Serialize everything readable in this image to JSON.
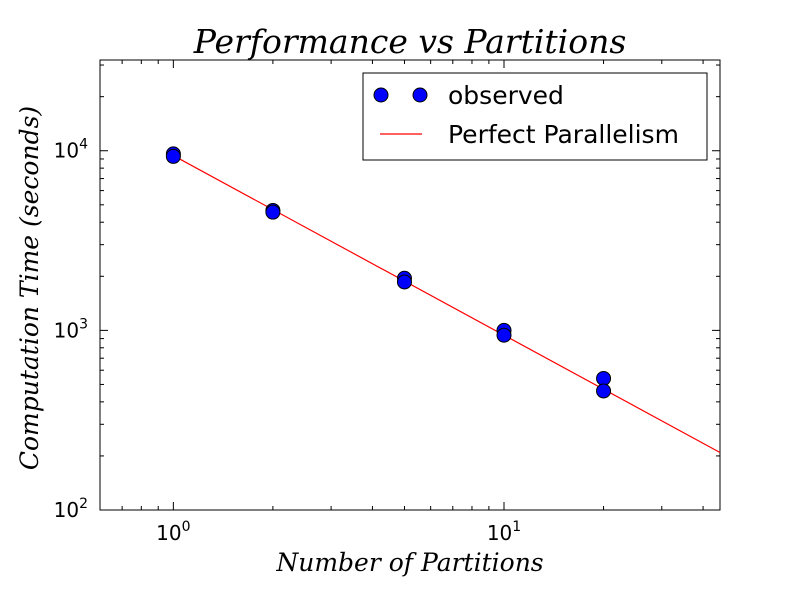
{
  "chart_data": {
    "type": "scatter",
    "title": "Performance vs Partitions",
    "xlabel": "Number of Partitions",
    "ylabel": "Computation Time (seconds)",
    "xscale": "log",
    "yscale": "log",
    "xlim": [
      0.6,
      45
    ],
    "ylim": [
      100,
      32000
    ],
    "xticks": [
      {
        "value": 1,
        "base": "10",
        "exp": "0"
      },
      {
        "value": 10,
        "base": "10",
        "exp": "1"
      }
    ],
    "yticks": [
      {
        "value": 100,
        "base": "10",
        "exp": "2"
      },
      {
        "value": 1000,
        "base": "10",
        "exp": "3"
      },
      {
        "value": 10000,
        "base": "10",
        "exp": "4"
      }
    ],
    "series": [
      {
        "name": "observed",
        "kind": "scatter",
        "color": "#0000ff",
        "points": [
          {
            "x": 1,
            "y": 9600
          },
          {
            "x": 1,
            "y": 9300
          },
          {
            "x": 2,
            "y": 4650
          },
          {
            "x": 2,
            "y": 4550
          },
          {
            "x": 5,
            "y": 1950
          },
          {
            "x": 5,
            "y": 1860
          },
          {
            "x": 10,
            "y": 1000
          },
          {
            "x": 10,
            "y": 940
          },
          {
            "x": 20,
            "y": 540
          },
          {
            "x": 20,
            "y": 460
          }
        ]
      },
      {
        "name": "Perfect Parallelism",
        "kind": "line",
        "color": "#ff0000",
        "x": [
          1,
          45
        ],
        "y": [
          9400,
          209
        ]
      }
    ],
    "legend": {
      "position": "top-right",
      "entries": [
        "observed",
        "Perfect Parallelism"
      ]
    },
    "grid": false
  }
}
